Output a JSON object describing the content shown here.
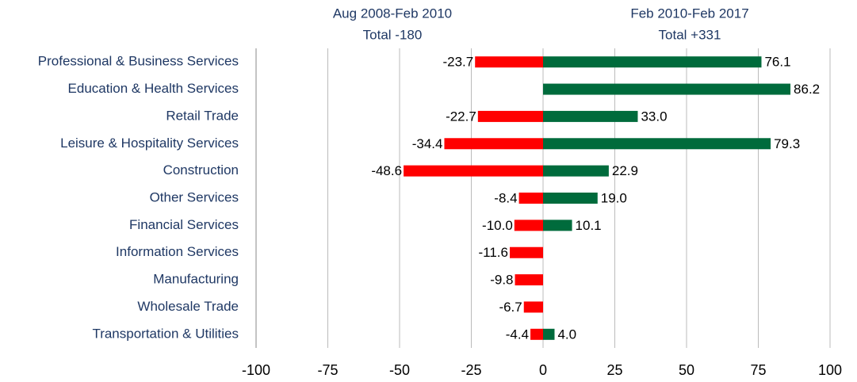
{
  "chart_data": {
    "type": "bar",
    "orientation": "horizontal",
    "categories": [
      "Professional & Business Services",
      "Education & Health Services",
      "Retail Trade",
      "Leisure & Hospitality Services",
      "Construction",
      "Other Services",
      "Financial Services",
      "Information Services",
      "Manufacturing",
      "Wholesale Trade",
      "Transportation & Utilities"
    ],
    "series": [
      {
        "name": "Aug 2008-Feb 2010",
        "subtitle": "Total -180",
        "color": "#ff0000",
        "values": [
          -23.7,
          null,
          -22.7,
          -34.4,
          -48.6,
          -8.4,
          -10.0,
          -11.6,
          -9.8,
          -6.7,
          -4.4
        ],
        "value_labels": [
          "-23.7",
          null,
          "-22.7",
          "-34.4",
          "-48.6",
          "-8.4",
          "-10.0",
          "-11.6",
          "-9.8",
          "-6.7",
          "-4.4"
        ]
      },
      {
        "name": "Feb 2010-Feb 2017",
        "subtitle": "Total +331",
        "color": "#006b3c",
        "values": [
          76.1,
          86.2,
          33.0,
          79.3,
          22.9,
          19.0,
          10.1,
          null,
          null,
          null,
          4.0
        ],
        "value_labels": [
          "76.1",
          "86.2",
          "33.0",
          "79.3",
          "22.9",
          "19.0",
          "10.1",
          null,
          null,
          null,
          "4.0"
        ]
      }
    ],
    "xlim": [
      -100,
      100
    ],
    "xticks": [
      -100,
      -75,
      -50,
      -25,
      0,
      25,
      50,
      75,
      100
    ],
    "grid": true
  }
}
